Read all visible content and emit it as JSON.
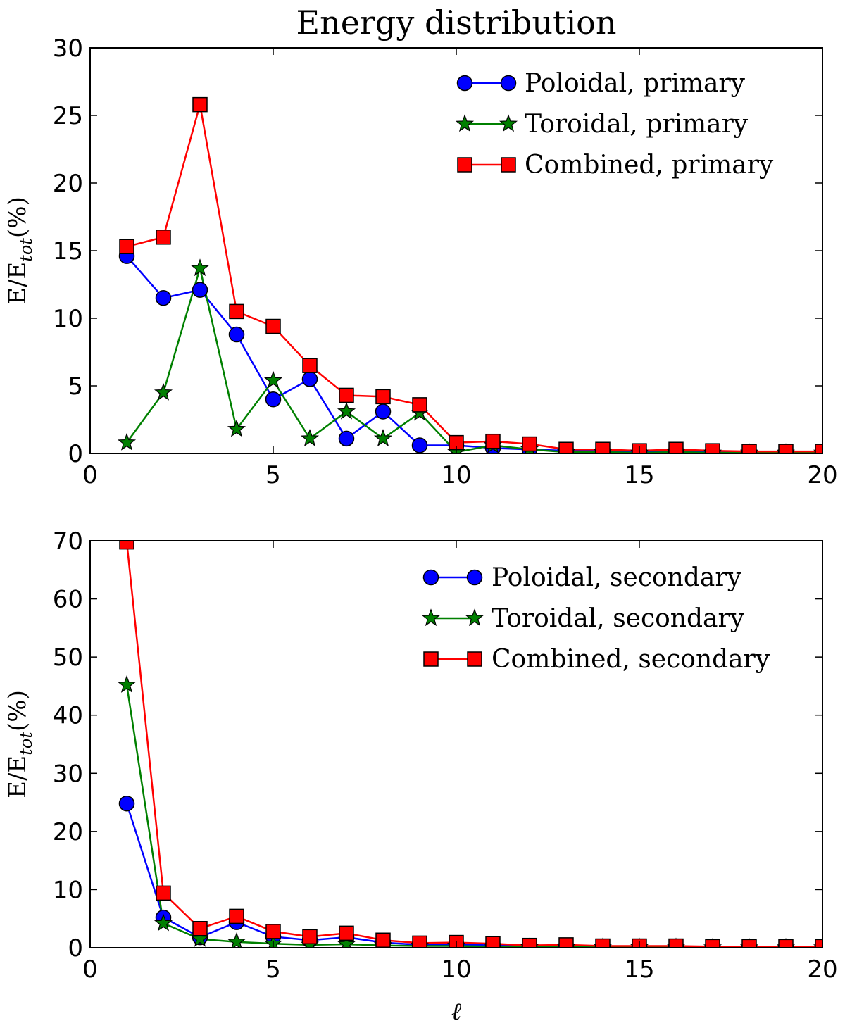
{
  "chart_data": [
    {
      "type": "line",
      "title": "Energy distribution",
      "xlabel": "",
      "ylabel_main": "E/E",
      "ylabel_sub": "tot",
      "ylabel_tail": "(%)",
      "xlim": [
        0,
        20
      ],
      "ylim": [
        0,
        30
      ],
      "xticks": [
        0,
        5,
        10,
        15,
        20
      ],
      "yticks": [
        0,
        5,
        10,
        15,
        20,
        25,
        30
      ],
      "legend_position": "top-right",
      "grid": false,
      "series": [
        {
          "name": "Poloidal, primary",
          "color": "#0000ff",
          "marker": "circle",
          "x": [
            1,
            2,
            3,
            4,
            5,
            6,
            7,
            8,
            9,
            10,
            11,
            12,
            13,
            14,
            15,
            16,
            17,
            18,
            19,
            20
          ],
          "y": [
            14.6,
            11.5,
            12.1,
            8.8,
            4.0,
            5.5,
            1.1,
            3.1,
            0.6,
            0.6,
            0.4,
            0.3,
            0.2,
            0.2,
            0.15,
            0.2,
            0.15,
            0.1,
            0.1,
            0.1
          ]
        },
        {
          "name": "Toroidal, primary",
          "color": "#008000",
          "marker": "star",
          "x": [
            1,
            2,
            3,
            4,
            5,
            6,
            7,
            8,
            9,
            10,
            11,
            12,
            13,
            14,
            15,
            16,
            17,
            18,
            19,
            20
          ],
          "y": [
            0.8,
            4.5,
            13.7,
            1.8,
            5.4,
            1.1,
            3.1,
            1.1,
            3.0,
            0.1,
            0.6,
            0.3,
            0.1,
            0.1,
            0.05,
            0.1,
            0.05,
            0.05,
            0.05,
            0.05
          ]
        },
        {
          "name": "Combined, primary",
          "color": "#ff0000",
          "marker": "square",
          "x": [
            1,
            2,
            3,
            4,
            5,
            6,
            7,
            8,
            9,
            10,
            11,
            12,
            13,
            14,
            15,
            16,
            17,
            18,
            19,
            20
          ],
          "y": [
            15.3,
            16.0,
            25.8,
            10.5,
            9.4,
            6.5,
            4.3,
            4.2,
            3.6,
            0.8,
            0.9,
            0.7,
            0.3,
            0.3,
            0.2,
            0.3,
            0.2,
            0.15,
            0.15,
            0.15
          ]
        }
      ]
    },
    {
      "type": "line",
      "title": "",
      "xlabel": "ℓ",
      "ylabel_main": "E/E",
      "ylabel_sub": "tot",
      "ylabel_tail": "(%)",
      "xlim": [
        0,
        20
      ],
      "ylim": [
        0,
        70
      ],
      "xticks": [
        0,
        5,
        10,
        15,
        20
      ],
      "yticks": [
        0,
        10,
        20,
        30,
        40,
        50,
        60,
        70
      ],
      "legend_position": "top-right",
      "grid": false,
      "series": [
        {
          "name": "Poloidal, secondary",
          "color": "#0000ff",
          "marker": "circle",
          "x": [
            1,
            2,
            3,
            4,
            5,
            6,
            7,
            8,
            9,
            10,
            11,
            12,
            13,
            14,
            15,
            16,
            17,
            18,
            19,
            20
          ],
          "y": [
            24.8,
            5.2,
            1.8,
            4.4,
            1.9,
            1.3,
            1.8,
            0.9,
            0.5,
            0.6,
            0.4,
            0.3,
            0.3,
            0.2,
            0.2,
            0.2,
            0.1,
            0.1,
            0.1,
            0.1
          ]
        },
        {
          "name": "Toroidal, secondary",
          "color": "#008000",
          "marker": "star",
          "x": [
            1,
            2,
            3,
            4,
            5,
            6,
            7,
            8,
            9,
            10,
            11,
            12,
            13,
            14,
            15,
            16,
            17,
            18,
            19,
            20
          ],
          "y": [
            45.2,
            4.2,
            1.5,
            1.0,
            0.7,
            0.5,
            0.6,
            0.4,
            0.3,
            0.3,
            0.2,
            0.1,
            0.1,
            0.1,
            0.1,
            0.1,
            0.05,
            0.05,
            0.05,
            0.05
          ]
        },
        {
          "name": "Combined, secondary",
          "color": "#ff0000",
          "marker": "square",
          "x": [
            1,
            2,
            3,
            4,
            5,
            6,
            7,
            8,
            9,
            10,
            11,
            12,
            13,
            14,
            15,
            16,
            17,
            18,
            19,
            20
          ],
          "y": [
            69.8,
            9.4,
            3.3,
            5.4,
            2.8,
            1.9,
            2.5,
            1.3,
            0.8,
            0.9,
            0.7,
            0.4,
            0.5,
            0.3,
            0.3,
            0.3,
            0.2,
            0.2,
            0.2,
            0.2
          ]
        }
      ]
    }
  ]
}
